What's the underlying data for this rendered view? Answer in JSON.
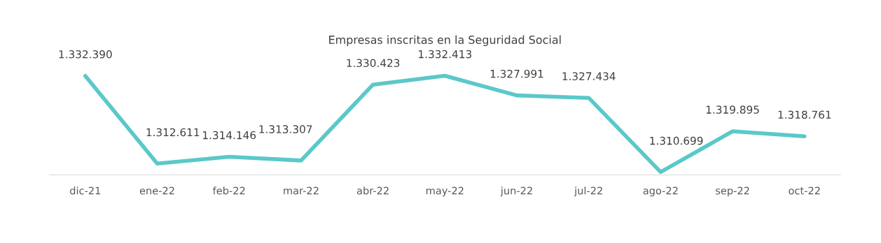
{
  "chart_data": {
    "type": "line",
    "title": "Empresas inscritas en la Seguridad Social",
    "categories": [
      "dic-21",
      "ene-22",
      "feb-22",
      "mar-22",
      "abr-22",
      "may-22",
      "jun-22",
      "jul-22",
      "ago-22",
      "sep-22",
      "oct-22"
    ],
    "values": [
      1332390,
      1312611,
      1314146,
      1313307,
      1330423,
      1332413,
      1327991,
      1327434,
      1310699,
      1319895,
      1318761
    ],
    "value_labels": [
      "1.332.390",
      "1.312.611",
      "1.314.146",
      "1.313.307",
      "1.330.423",
      "1.332.413",
      "1.327.991",
      "1.327.434",
      "1.310.699",
      "1.319.895",
      "1.318.761"
    ],
    "color": "#5bc8c9",
    "tick_labels": "x",
    "grid": false,
    "legend": false,
    "marker": "none",
    "line_style": "solid"
  }
}
